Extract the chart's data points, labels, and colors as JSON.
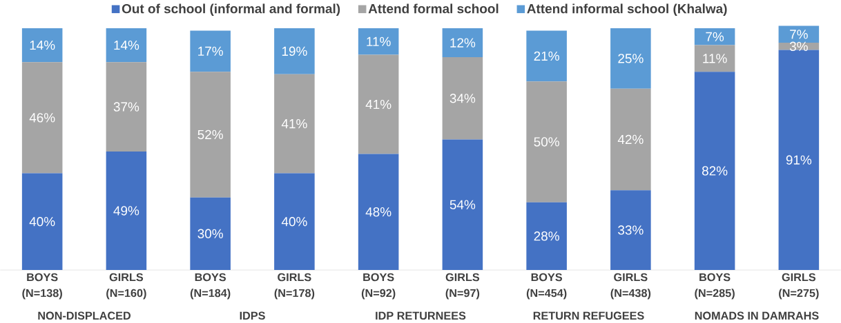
{
  "chart_data": {
    "type": "bar",
    "stacked": true,
    "legend": "top",
    "categories": [
      "BOYS (N=138)",
      "GIRLS (N=160)",
      "BOYS (N=184)",
      "GIRLS (N=178)",
      "BOYS (N=92)",
      "GIRLS (N=97)",
      "BOYS (N=454)",
      "GIRLS (N=438)",
      "BOYS (N=285)",
      "GIRLS (N=275)"
    ],
    "series": [
      {
        "name": "Out of school (informal and formal)",
        "color": "#4472c4",
        "values": [
          40,
          49,
          30,
          40,
          48,
          54,
          28,
          33,
          82,
          91
        ],
        "value_labels": [
          "40%",
          "49%",
          "30%",
          "40%",
          "48%",
          "54%",
          "28%",
          "33%",
          "82%",
          "91%"
        ]
      },
      {
        "name": "Attend formal school",
        "color": "#a5a5a5",
        "values": [
          46,
          37,
          52,
          41,
          41,
          34,
          50,
          42,
          11,
          3
        ],
        "value_labels": [
          "46%",
          "37%",
          "52%",
          "41%",
          "41%",
          "34%",
          "50%",
          "42%",
          "11%",
          "3%"
        ]
      },
      {
        "name": "Attend informal school (Khalwa)",
        "color": "#5b9bd5",
        "values": [
          14,
          14,
          17,
          19,
          11,
          12,
          21,
          25,
          7,
          7
        ],
        "value_labels": [
          "14%",
          "14%",
          "17%",
          "19%",
          "11%",
          "12%",
          "21%",
          "25%",
          "7%",
          "7%"
        ]
      }
    ],
    "annotations": [
      "NON-DISPLACED",
      "IDPS",
      "IDP RETURNEES",
      "RETURN REFUGEES",
      "NOMADS IN DAMRAHS"
    ]
  }
}
